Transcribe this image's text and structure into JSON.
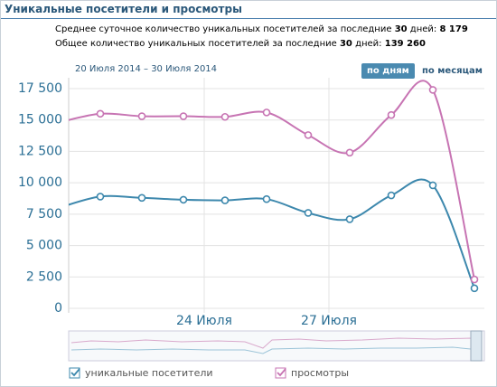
{
  "header": {
    "stats": [
      {
        "text": "Среднее суточное количество уникальных посетителей за последние",
        "days": "30",
        "unit": "дней:",
        "value": "8 179"
      },
      {
        "text": "Общее количество уникальных посетителей за последние",
        "days": "30",
        "unit": "дней:",
        "value": "139 260"
      }
    ],
    "range": "20 Июля 2014 – 30 Июля 2014",
    "buttons": [
      "по дням",
      "по месяцам"
    ]
  },
  "chart_data": {
    "type": "line",
    "title": "Уникальные посетители и просмотры",
    "categories": [
      null,
      null,
      null,
      null,
      "24 Июля",
      null,
      null,
      "27 Июля",
      null,
      null,
      null
    ],
    "series": [
      {
        "name": "уникальные посетители",
        "color": "#3d88ad",
        "values": [
          8000,
          8900,
          8800,
          8650,
          8600,
          8700,
          7600,
          7100,
          9000,
          9800,
          1600
        ]
      },
      {
        "name": "просмотры",
        "color": "#c774b3",
        "values": [
          14800,
          15500,
          15300,
          15300,
          15250,
          15600,
          13800,
          12400,
          15400,
          17400,
          2300
        ]
      }
    ],
    "ylim": [
      0,
      17500
    ],
    "yticks": [
      0,
      {
        "value": 2500,
        "label": "2 500"
      },
      {
        "value": 5000,
        "label": "5 000"
      },
      {
        "value": 7500,
        "label": "7 500"
      },
      {
        "value": 10000,
        "label": "10 000"
      },
      {
        "value": 12500,
        "label": "12 500"
      },
      {
        "value": 15000,
        "label": "15 000"
      },
      {
        "value": 17500,
        "label": "17 500"
      }
    ],
    "grid": true
  }
}
